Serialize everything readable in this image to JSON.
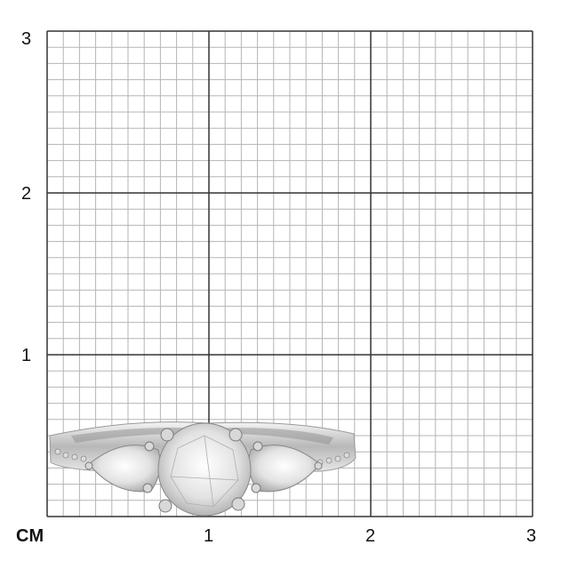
{
  "scale": {
    "unit_label": "CM",
    "x_ticks": [
      "1",
      "2",
      "3"
    ],
    "y_ticks": [
      "1",
      "2",
      "3"
    ],
    "minor_divisions_per_unit": 10
  },
  "colors": {
    "major_line": "#333333",
    "minor_line": "#b5b5b5",
    "metal": "#c9c9c9"
  },
  "product": {
    "icon": "three-stone-ring-image"
  }
}
